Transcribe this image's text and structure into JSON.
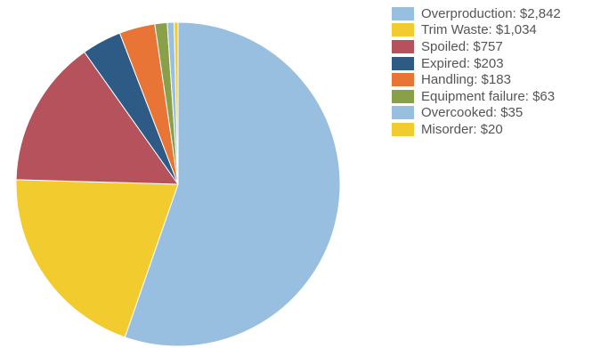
{
  "chart_data": {
    "type": "pie",
    "title": "",
    "categories": [
      "Overproduction",
      "Trim Waste",
      "Spoiled",
      "Expired",
      "Handling",
      "Equipment failure",
      "Overcooked",
      "Misorder"
    ],
    "values": [
      2842,
      1034,
      757,
      203,
      183,
      63,
      35,
      20
    ],
    "colors": [
      "#98bfdf",
      "#f2cb2f",
      "#b5525c",
      "#2d5b86",
      "#e87535",
      "#8aa048",
      "#98bfdf",
      "#f2cb2f"
    ],
    "legend_labels": [
      "Overproduction: $2,842",
      "Trim Waste: $1,034",
      "Spoiled: $757",
      "Expired: $203",
      "Handling: $183",
      "Equipment failure: $63",
      "Overcooked: $35",
      "Misorder: $20"
    ],
    "legend_position": "top-right",
    "start_angle": "12 o'clock",
    "direction": "clockwise"
  }
}
